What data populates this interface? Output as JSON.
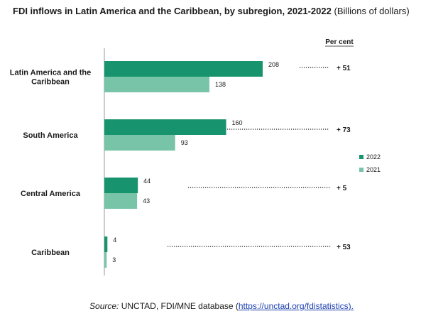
{
  "title_main": "FDI inflows in Latin America and the Caribbean, by subregion, 2021-2022",
  "title_unit": "(Billions of dollars)",
  "source_prefix": "Source:",
  "source_text": "UNCTAD, FDI/MNE database (",
  "source_link": "https://unctad.org/fdistatistics",
  "source_suffix": ").",
  "colors": {
    "s2022": "#17936e",
    "s2021": "#78c4a9",
    "axis": "#999999"
  },
  "chart_data": {
    "type": "bar",
    "orientation": "horizontal",
    "categories": [
      "Latin America and the Caribbean",
      "South America",
      "Central America",
      "Caribbean"
    ],
    "series": [
      {
        "name": "2022",
        "values": [
          208,
          160,
          44,
          4
        ]
      },
      {
        "name": "2021",
        "values": [
          138,
          93,
          43,
          3
        ]
      }
    ],
    "percent_header": "Per cent",
    "percent_change": [
      "+ 51",
      "+ 73",
      "+ 5",
      "+ 53"
    ],
    "xlim": [
      0,
      220
    ],
    "legend_position": "right",
    "grid": false
  }
}
